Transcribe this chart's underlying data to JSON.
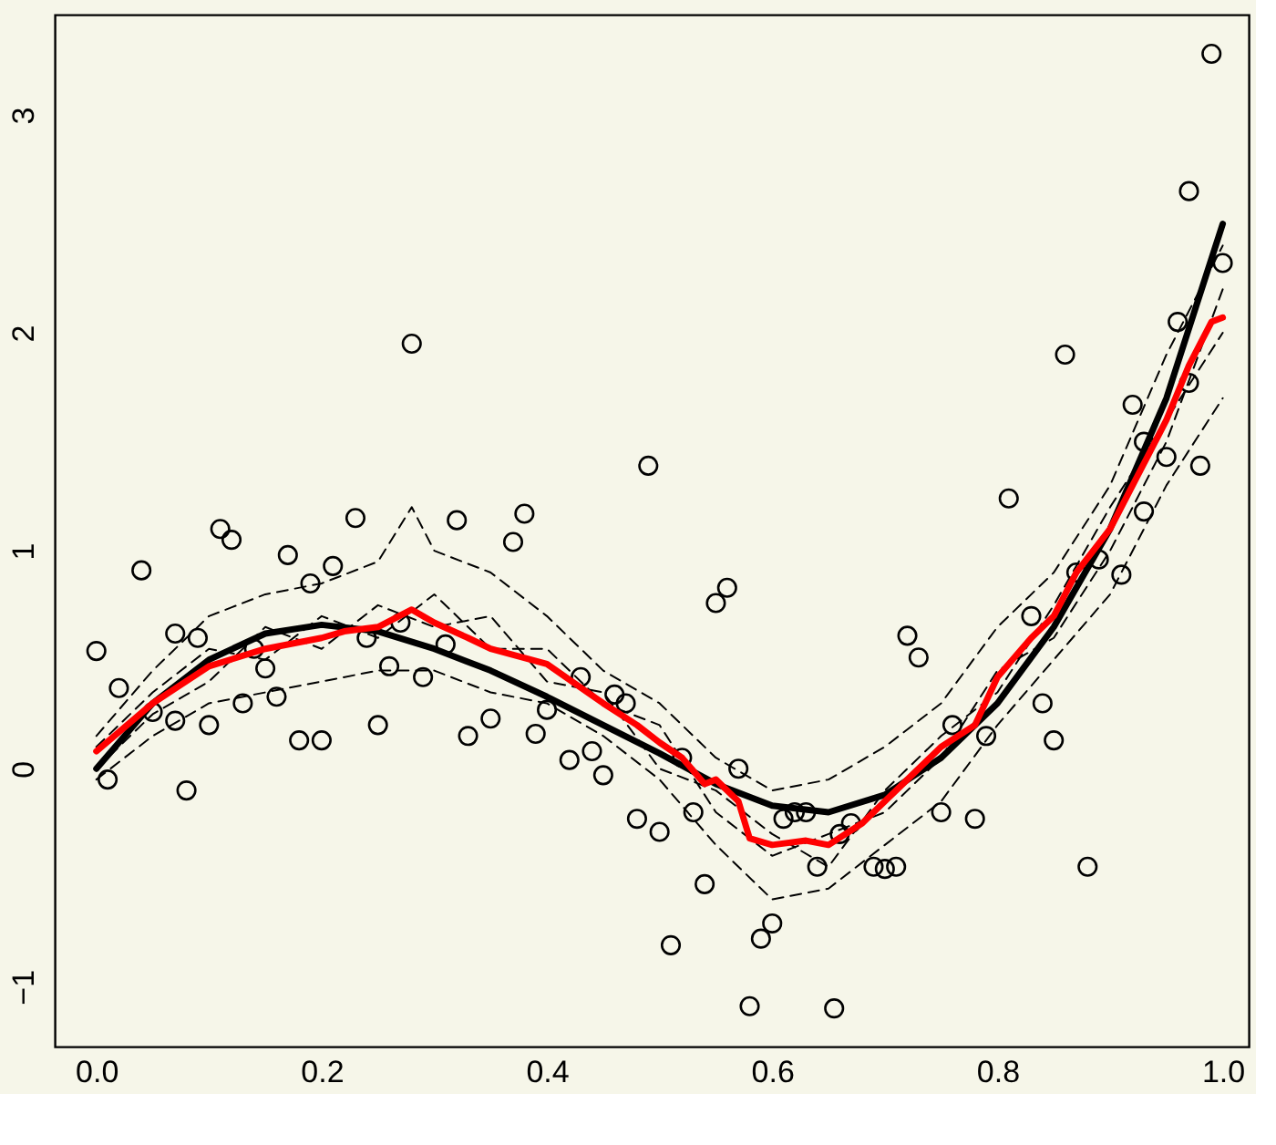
{
  "chart_data": {
    "type": "scatter",
    "xlim": [
      -0.037,
      1.023
    ],
    "ylim": [
      -1.275,
      3.46
    ],
    "xticks": [
      {
        "value": 0,
        "label": "0.0"
      },
      {
        "value": 0.2,
        "label": "0.2"
      },
      {
        "value": 0.4,
        "label": "0.4"
      },
      {
        "value": 0.6,
        "label": "0.6"
      },
      {
        "value": 0.8,
        "label": "0.8"
      },
      {
        "value": 1,
        "label": "1.0"
      }
    ],
    "yticks": [
      {
        "value": -1,
        "label": "−1"
      },
      0,
      1,
      2,
      3
    ],
    "grid": false,
    "series": [
      {
        "type": "line",
        "color": "#000000",
        "line_style": "dashed",
        "marker": "none",
        "x": [
          0,
          0.05,
          0.1,
          0.15,
          0.2,
          0.25,
          0.28,
          0.3,
          0.35,
          0.4,
          0.45,
          0.5,
          0.55,
          0.6,
          0.65,
          0.7,
          0.75,
          0.8,
          0.85,
          0.9,
          0.95,
          1.0
        ],
        "values": [
          0.15,
          0.45,
          0.7,
          0.8,
          0.85,
          0.95,
          1.2,
          1.0,
          0.9,
          0.7,
          0.45,
          0.3,
          0.05,
          -0.1,
          -0.05,
          0.1,
          0.3,
          0.65,
          0.9,
          1.3,
          1.9,
          2.4
        ]
      },
      {
        "type": "line",
        "color": "#000000",
        "line_style": "dashed",
        "marker": "none",
        "x": [
          0,
          0.05,
          0.1,
          0.15,
          0.2,
          0.25,
          0.3,
          0.35,
          0.4,
          0.45,
          0.5,
          0.55,
          0.6,
          0.65,
          0.7,
          0.75,
          0.8,
          0.85,
          0.9,
          0.95,
          1.0
        ],
        "values": [
          -0.05,
          0.15,
          0.3,
          0.35,
          0.4,
          0.45,
          0.45,
          0.35,
          0.3,
          0.15,
          -0.05,
          -0.35,
          -0.6,
          -0.55,
          -0.35,
          -0.15,
          0.2,
          0.5,
          0.8,
          1.3,
          1.7
        ]
      },
      {
        "type": "line",
        "color": "#000000",
        "line_style": "dashed",
        "marker": "none",
        "x": [
          0,
          0.05,
          0.1,
          0.15,
          0.2,
          0.25,
          0.3,
          0.35,
          0.4,
          0.45,
          0.5,
          0.55,
          0.6,
          0.65,
          0.7,
          0.75,
          0.8,
          0.85,
          0.9,
          0.95,
          1.0
        ],
        "values": [
          0.1,
          0.35,
          0.55,
          0.5,
          0.7,
          0.6,
          0.8,
          0.55,
          0.55,
          0.3,
          0.2,
          -0.2,
          -0.4,
          -0.3,
          -0.2,
          0.05,
          0.45,
          0.6,
          1.0,
          1.5,
          2.2
        ]
      },
      {
        "type": "line",
        "color": "#000000",
        "line_style": "dashed",
        "marker": "none",
        "x": [
          0,
          0.05,
          0.1,
          0.15,
          0.2,
          0.25,
          0.3,
          0.35,
          0.4,
          0.45,
          0.5,
          0.55,
          0.6,
          0.65,
          0.7,
          0.75,
          0.8,
          0.85,
          0.9,
          0.95,
          1.0
        ],
        "values": [
          0.0,
          0.25,
          0.4,
          0.65,
          0.55,
          0.75,
          0.65,
          0.7,
          0.4,
          0.35,
          0.0,
          -0.1,
          -0.3,
          -0.45,
          -0.1,
          0.15,
          0.35,
          0.75,
          1.2,
          1.6,
          2.0
        ]
      },
      {
        "color": "#000000",
        "marker": "circle",
        "x": [
          0,
          0.01,
          0.02,
          0.04,
          0.05,
          0.07,
          0.08,
          0.07,
          0.09,
          0.1,
          0.11,
          0.12,
          0.13,
          0.14,
          0.15,
          0.16,
          0.17,
          0.18,
          0.19,
          0.2,
          0.21,
          0.23,
          0.24,
          0.25,
          0.26,
          0.27,
          0.28,
          0.29,
          0.31,
          0.32,
          0.33,
          0.35,
          0.37,
          0.38,
          0.39,
          0.4,
          0.42,
          0.43,
          0.44,
          0.45,
          0.46,
          0.47,
          0.48,
          0.49,
          0.5,
          0.51,
          0.52,
          0.53,
          0.54,
          0.55,
          0.56,
          0.57,
          0.58,
          0.59,
          0.6,
          0.61,
          0.62,
          0.63,
          0.64,
          0.655,
          0.66,
          0.67,
          0.69,
          0.7,
          0.71,
          0.72,
          0.73,
          0.75,
          0.76,
          0.78,
          0.79,
          0.81,
          0.83,
          0.84,
          0.85,
          0.86,
          0.87,
          0.88,
          0.89,
          0.91,
          0.92,
          0.93,
          0.93,
          0.95,
          0.96,
          0.97,
          0.97,
          0.98,
          0.99,
          1.0
        ],
        "values": [
          0.54,
          -0.05,
          0.37,
          0.91,
          0.26,
          0.22,
          -0.1,
          0.62,
          0.6,
          0.2,
          1.1,
          1.05,
          0.3,
          0.55,
          0.46,
          0.33,
          0.98,
          0.13,
          0.85,
          0.13,
          0.93,
          1.15,
          0.6,
          0.2,
          0.47,
          0.67,
          1.95,
          0.42,
          0.57,
          1.14,
          0.15,
          0.23,
          1.04,
          1.17,
          0.16,
          0.27,
          0.04,
          0.42,
          0.08,
          -0.03,
          0.34,
          0.3,
          -0.23,
          1.39,
          -0.29,
          -0.81,
          0.05,
          -0.2,
          -0.53,
          0.76,
          0.83,
          0.0,
          -1.09,
          -0.78,
          -0.71,
          -0.23,
          -0.2,
          -0.2,
          -0.45,
          -1.1,
          -0.3,
          -0.25,
          -0.45,
          -0.46,
          -0.45,
          0.61,
          0.51,
          -0.2,
          0.2,
          -0.23,
          0.15,
          1.24,
          0.7,
          0.3,
          0.13,
          1.9,
          0.9,
          -0.45,
          0.96,
          0.89,
          1.67,
          1.18,
          1.5,
          1.43,
          2.05,
          2.65,
          1.77,
          1.39,
          3.28,
          2.32
        ]
      },
      {
        "type": "line",
        "color": "#000000",
        "line_style": "solid",
        "marker": "none",
        "x": [
          0,
          0.05,
          0.1,
          0.15,
          0.2,
          0.25,
          0.3,
          0.35,
          0.4,
          0.45,
          0.5,
          0.55,
          0.6,
          0.65,
          0.7,
          0.75,
          0.8,
          0.85,
          0.9,
          0.95,
          1.0
        ],
        "values": [
          0.0,
          0.3,
          0.5,
          0.62,
          0.66,
          0.63,
          0.55,
          0.45,
          0.33,
          0.2,
          0.07,
          -0.07,
          -0.17,
          -0.2,
          -0.12,
          0.05,
          0.3,
          0.65,
          1.1,
          1.7,
          2.5
        ]
      },
      {
        "type": "line",
        "color": "#ff0000",
        "line_style": "solid",
        "marker": "none",
        "x": [
          0,
          0.05,
          0.1,
          0.15,
          0.2,
          0.22,
          0.25,
          0.28,
          0.3,
          0.33,
          0.35,
          0.4,
          0.45,
          0.48,
          0.5,
          0.52,
          0.54,
          0.55,
          0.57,
          0.58,
          0.6,
          0.63,
          0.65,
          0.68,
          0.7,
          0.72,
          0.75,
          0.78,
          0.8,
          0.83,
          0.85,
          0.87,
          0.9,
          0.93,
          0.95,
          0.97,
          0.99,
          1.0
        ],
        "values": [
          0.08,
          0.3,
          0.47,
          0.55,
          0.6,
          0.63,
          0.65,
          0.73,
          0.67,
          0.6,
          0.55,
          0.48,
          0.3,
          0.2,
          0.12,
          0.05,
          -0.07,
          -0.05,
          -0.15,
          -0.32,
          -0.35,
          -0.33,
          -0.35,
          -0.25,
          -0.15,
          -0.05,
          0.1,
          0.2,
          0.42,
          0.6,
          0.7,
          0.9,
          1.1,
          1.4,
          1.6,
          1.85,
          2.05,
          2.07
        ]
      }
    ]
  }
}
